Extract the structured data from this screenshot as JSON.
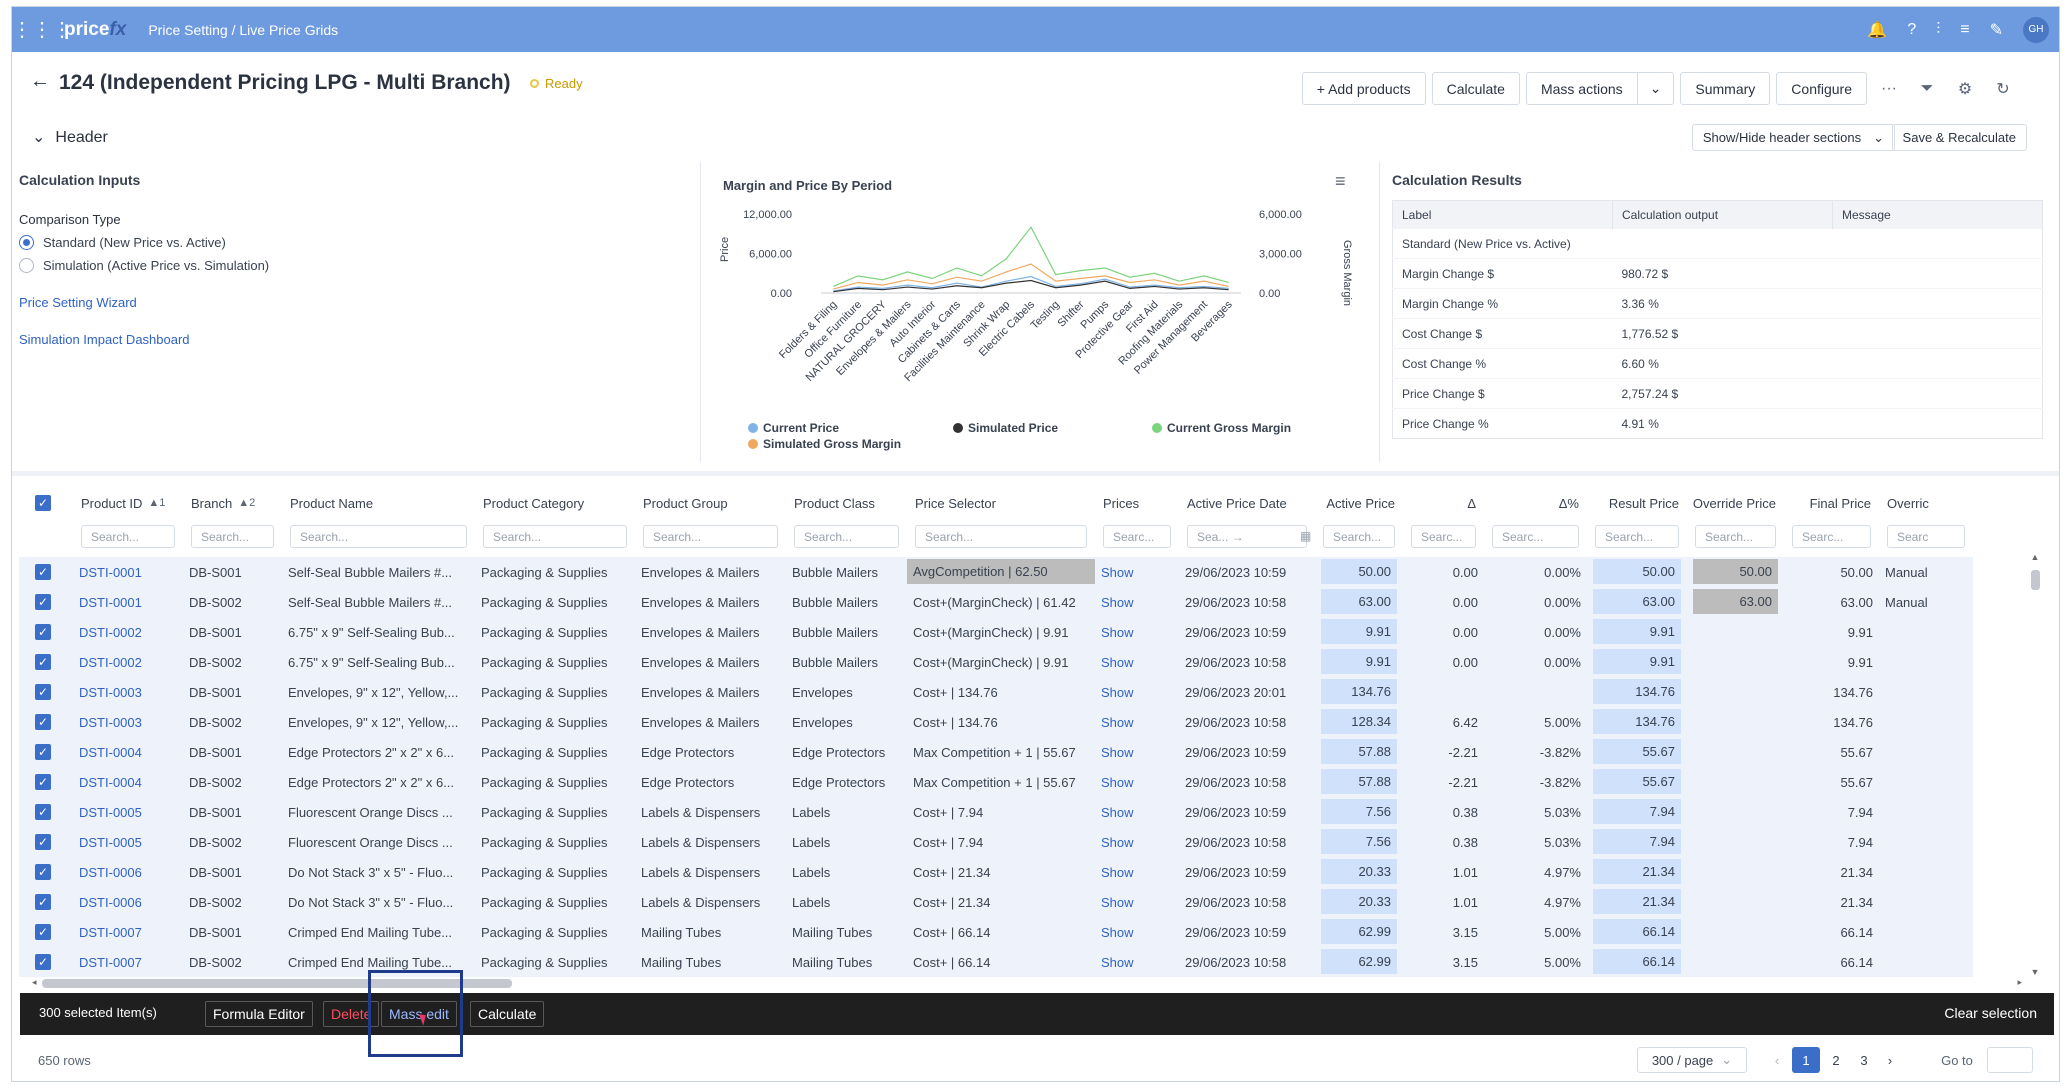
{
  "topbar": {
    "logo": "price",
    "logo_suffix": "fx",
    "breadcrumb": "Price Setting / Live Price Grids",
    "avatar": "GH"
  },
  "title": {
    "text": "124 (Independent Pricing LPG - Multi Branch)",
    "status": "Ready"
  },
  "toolbar": {
    "add_products": "+ Add products",
    "calculate": "Calculate",
    "mass_actions": "Mass actions",
    "mass_actions_arrow": "⌄",
    "summary": "Summary",
    "configure": "Configure",
    "more": "···"
  },
  "header_section": {
    "label": "Header",
    "show_hide": "Show/Hide header sections",
    "save_recalc": "Save & Recalculate"
  },
  "calc_inputs": {
    "title": "Calculation Inputs",
    "comparison_label": "Comparison Type",
    "option_standard": "Standard (New Price vs. Active)",
    "option_simulation": "Simulation (Active Price vs. Simulation)",
    "link_wizard": "Price Setting Wizard",
    "link_dashboard": "Simulation Impact Dashboard"
  },
  "chart_data": {
    "type": "line",
    "title": "Margin and Price By Period",
    "ylabel": "Price",
    "y2label": "Gross Margin",
    "ylim": [
      0,
      12000
    ],
    "y2lim": [
      0,
      6000
    ],
    "yticks": [
      "12,000.00",
      "6,000.00",
      "0.00"
    ],
    "y2ticks": [
      "6,000.00",
      "3,000.00",
      "0.00"
    ],
    "categories": [
      "Folders & Filing",
      "Office Furniture",
      "NATURAL GROCERY",
      "Envelopes & Mailers",
      "Auto Interior",
      "Cabinets & Carts",
      "Facilities Maintenance",
      "Shrink Wrap",
      "Electric Cabels",
      "Testing",
      "Shifter",
      "Pumps",
      "Protective Gear",
      "First Aid",
      "Roofing Materials",
      "Power Management",
      "Beverages"
    ],
    "series": [
      {
        "name": "Current Price",
        "color": "#7fb3e8",
        "values": [
          300,
          900,
          700,
          1200,
          800,
          1500,
          900,
          1800,
          2500,
          1000,
          1400,
          2100,
          900,
          1200,
          800,
          1000,
          700
        ]
      },
      {
        "name": "Simulated Price",
        "color": "#333333",
        "values": [
          200,
          700,
          500,
          900,
          600,
          1100,
          800,
          1500,
          1900,
          800,
          1200,
          1800,
          700,
          1000,
          600,
          800,
          500
        ]
      },
      {
        "name": "Current Gross Margin",
        "color": "#7cd37a",
        "values": [
          500,
          1300,
          1000,
          1600,
          1100,
          1900,
          1300,
          2600,
          5000,
          1400,
          1700,
          1900,
          1200,
          1500,
          900,
          1300,
          800
        ]
      },
      {
        "name": "Simulated Gross Margin",
        "color": "#f0a860",
        "values": [
          300,
          800,
          600,
          1000,
          700,
          1200,
          900,
          1600,
          2200,
          900,
          1100,
          1300,
          800,
          1000,
          600,
          900,
          500
        ]
      }
    ]
  },
  "calc_results": {
    "title": "Calculation Results",
    "headers": [
      "Label",
      "Calculation output",
      "Message"
    ],
    "rows": [
      [
        "Standard (New Price vs. Active)",
        "",
        ""
      ],
      [
        "Margin Change $",
        "980.72 $",
        ""
      ],
      [
        "Margin Change %",
        "3.36 %",
        ""
      ],
      [
        "Cost Change $",
        "1,776.52 $",
        ""
      ],
      [
        "Cost Change %",
        "6.60 %",
        ""
      ],
      [
        "Price Change $",
        "2,757.24 $",
        ""
      ],
      [
        "Price Change %",
        "4.91 %",
        ""
      ]
    ]
  },
  "grid": {
    "columns": [
      "Product ID",
      "Branch",
      "Product Name",
      "Product Category",
      "Product Group",
      "Product Class",
      "Price Selector",
      "Prices",
      "Active Price Date",
      "Active Price",
      "Δ",
      "Δ%",
      "Result Price",
      "Override Price",
      "Final Price",
      "Overric"
    ],
    "sort_badges": [
      "▲1",
      "▲2"
    ],
    "search_placeholders": [
      "Search...",
      "Search...",
      "Search...",
      "Search...",
      "Search...",
      "Search...",
      "Search...",
      "Searc...",
      "Sea... →",
      "Search...",
      "Searc...",
      "Searc...",
      "Search...",
      "Search...",
      "Searc...",
      "Searc"
    ],
    "rows": [
      [
        "DSTI-0001",
        "DB-S001",
        "Self-Seal Bubble Mailers #...",
        "Packaging & Supplies",
        "Envelopes & Mailers",
        "Bubble Mailers",
        "AvgCompetition | 62.50",
        "Show",
        "29/06/2023 10:59",
        "50.00",
        "0.00",
        "0.00%",
        "50.00",
        "50.00",
        "50.00",
        "Manual"
      ],
      [
        "DSTI-0001",
        "DB-S002",
        "Self-Seal Bubble Mailers #...",
        "Packaging & Supplies",
        "Envelopes & Mailers",
        "Bubble Mailers",
        "Cost+(MarginCheck) | 61.42",
        "Show",
        "29/06/2023 10:58",
        "63.00",
        "0.00",
        "0.00%",
        "63.00",
        "63.00",
        "63.00",
        "Manual"
      ],
      [
        "DSTI-0002",
        "DB-S001",
        "6.75\" x 9\" Self-Sealing Bub...",
        "Packaging & Supplies",
        "Envelopes & Mailers",
        "Bubble Mailers",
        "Cost+(MarginCheck) | 9.91",
        "Show",
        "29/06/2023 10:59",
        "9.91",
        "0.00",
        "0.00%",
        "9.91",
        "",
        "9.91",
        ""
      ],
      [
        "DSTI-0002",
        "DB-S002",
        "6.75\" x 9\" Self-Sealing Bub...",
        "Packaging & Supplies",
        "Envelopes & Mailers",
        "Bubble Mailers",
        "Cost+(MarginCheck) | 9.91",
        "Show",
        "29/06/2023 10:58",
        "9.91",
        "0.00",
        "0.00%",
        "9.91",
        "",
        "9.91",
        ""
      ],
      [
        "DSTI-0003",
        "DB-S001",
        "Envelopes, 9\" x 12\", Yellow,...",
        "Packaging & Supplies",
        "Envelopes & Mailers",
        "Envelopes",
        "Cost+ | 134.76",
        "Show",
        "29/06/2023 20:01",
        "134.76",
        "",
        "",
        "134.76",
        "",
        "134.76",
        ""
      ],
      [
        "DSTI-0003",
        "DB-S002",
        "Envelopes, 9\" x 12\", Yellow,...",
        "Packaging & Supplies",
        "Envelopes & Mailers",
        "Envelopes",
        "Cost+ | 134.76",
        "Show",
        "29/06/2023 10:58",
        "128.34",
        "6.42",
        "5.00%",
        "134.76",
        "",
        "134.76",
        ""
      ],
      [
        "DSTI-0004",
        "DB-S001",
        "Edge Protectors 2\" x 2\" x 6...",
        "Packaging & Supplies",
        "Edge Protectors",
        "Edge Protectors",
        "Max Competition + 1 | 55.67",
        "Show",
        "29/06/2023 10:59",
        "57.88",
        "-2.21",
        "-3.82%",
        "55.67",
        "",
        "55.67",
        ""
      ],
      [
        "DSTI-0004",
        "DB-S002",
        "Edge Protectors 2\" x 2\" x 6...",
        "Packaging & Supplies",
        "Edge Protectors",
        "Edge Protectors",
        "Max Competition + 1 | 55.67",
        "Show",
        "29/06/2023 10:58",
        "57.88",
        "-2.21",
        "-3.82%",
        "55.67",
        "",
        "55.67",
        ""
      ],
      [
        "DSTI-0005",
        "DB-S001",
        "Fluorescent Orange Discs ...",
        "Packaging & Supplies",
        "Labels & Dispensers",
        "Labels",
        "Cost+ | 7.94",
        "Show",
        "29/06/2023 10:59",
        "7.56",
        "0.38",
        "5.03%",
        "7.94",
        "",
        "7.94",
        ""
      ],
      [
        "DSTI-0005",
        "DB-S002",
        "Fluorescent Orange Discs ...",
        "Packaging & Supplies",
        "Labels & Dispensers",
        "Labels",
        "Cost+ | 7.94",
        "Show",
        "29/06/2023 10:58",
        "7.56",
        "0.38",
        "5.03%",
        "7.94",
        "",
        "7.94",
        ""
      ],
      [
        "DSTI-0006",
        "DB-S001",
        "Do Not Stack 3\" x 5\" - Fluo...",
        "Packaging & Supplies",
        "Labels & Dispensers",
        "Labels",
        "Cost+ | 21.34",
        "Show",
        "29/06/2023 10:59",
        "20.33",
        "1.01",
        "4.97%",
        "21.34",
        "",
        "21.34",
        ""
      ],
      [
        "DSTI-0006",
        "DB-S002",
        "Do Not Stack 3\" x 5\" - Fluo...",
        "Packaging & Supplies",
        "Labels & Dispensers",
        "Labels",
        "Cost+ | 21.34",
        "Show",
        "29/06/2023 10:58",
        "20.33",
        "1.01",
        "4.97%",
        "21.34",
        "",
        "21.34",
        ""
      ],
      [
        "DSTI-0007",
        "DB-S001",
        "Crimped End Mailing Tube...",
        "Packaging & Supplies",
        "Mailing Tubes",
        "Mailing Tubes",
        "Cost+ | 66.14",
        "Show",
        "29/06/2023 10:59",
        "62.99",
        "3.15",
        "5.00%",
        "66.14",
        "",
        "66.14",
        ""
      ],
      [
        "DSTI-0007",
        "DB-S002",
        "Crimped End Mailing Tube...",
        "Packaging & Supplies",
        "Mailing Tubes",
        "Mailing Tubes",
        "Cost+ | 66.14",
        "Show",
        "29/06/2023 10:58",
        "62.99",
        "3.15",
        "5.00%",
        "66.14",
        "",
        "66.14",
        ""
      ]
    ]
  },
  "action_bar": {
    "selected": "300 selected Item(s)",
    "formula_editor": "Formula Editor",
    "delete": "Delete",
    "mass_edit": "Mass edit",
    "calculate": "Calculate",
    "clear": "Clear selection"
  },
  "footer": {
    "rows": "650 rows",
    "page_size": "300 / page",
    "pages": [
      "1",
      "2",
      "3"
    ],
    "goto": "Go to"
  },
  "colors": {
    "topbar": "#6e9be0",
    "accent": "#3a6ec8",
    "highlight_cell": "#cfe1fb",
    "delete": "#d0394a"
  }
}
